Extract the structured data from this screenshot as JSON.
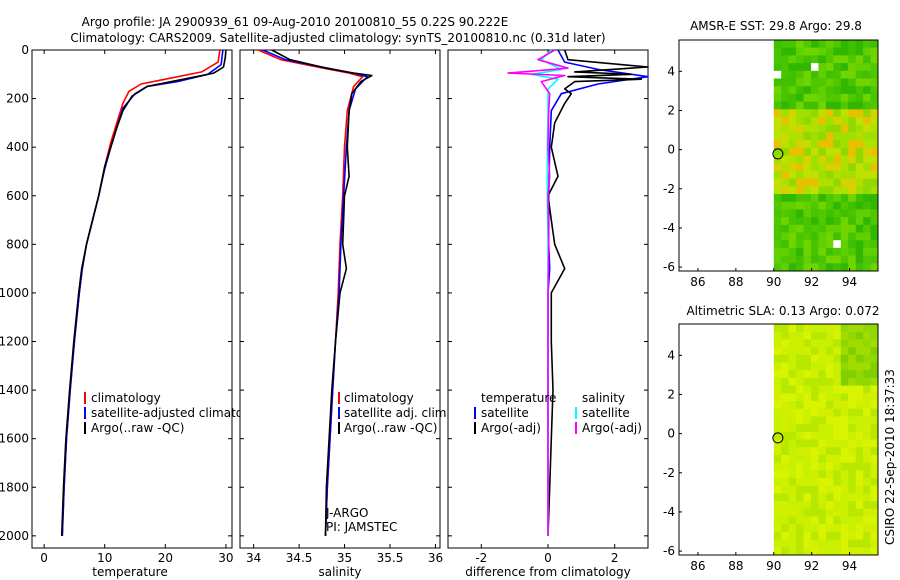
{
  "header": {
    "line1": "Argo profile: JA 2900939_61 09-Aug-2010 20100810_55 0.22S 90.222E",
    "line2": "Climatology: CARS2009. Satellite-adjusted climatology: synTS_20100810.nc (0.31d later)"
  },
  "credit": "CSIRO 22-Sep-2010 18:37:33",
  "colors": {
    "clim": "#ff0000",
    "sat": "#0000ff",
    "argo": "#000000",
    "sat_sal": "#00ffff",
    "argo_sal": "#ff00ff",
    "map_bg": "#ffffff",
    "land": "#ffffff"
  },
  "chart_data": [
    {
      "id": "temperature",
      "type": "line",
      "xlabel": "temperature",
      "xlim": [
        -2,
        31
      ],
      "ylim": [
        0,
        2050
      ],
      "xticks": [
        0,
        10,
        20,
        30
      ],
      "yticks": [
        0,
        200,
        400,
        600,
        800,
        1000,
        1200,
        1400,
        1600,
        1800,
        2000
      ],
      "legend": [
        "climatology",
        "satellite-adjusted climatology",
        "Argo(..raw -QC)"
      ],
      "series": [
        {
          "name": "climatology",
          "color": "#ff0000",
          "points": [
            [
              29.0,
              0
            ],
            [
              28.7,
              50
            ],
            [
              26,
              90
            ],
            [
              20,
              120
            ],
            [
              16,
              140
            ],
            [
              14,
              170
            ],
            [
              13,
              220
            ],
            [
              12,
              300
            ],
            [
              11,
              380
            ],
            [
              10,
              480
            ],
            [
              9,
              600
            ],
            [
              8,
              700
            ],
            [
              7,
              800
            ],
            [
              6.3,
              900
            ],
            [
              5.8,
              1000
            ],
            [
              5,
              1200
            ],
            [
              4.3,
              1400
            ],
            [
              3.7,
              1600
            ],
            [
              3.3,
              1800
            ],
            [
              3,
              2000
            ]
          ]
        },
        {
          "name": "satellite-adjusted climatology",
          "color": "#0000ff",
          "points": [
            [
              29.5,
              0
            ],
            [
              29.2,
              60
            ],
            [
              27,
              100
            ],
            [
              22,
              130
            ],
            [
              17,
              150
            ],
            [
              15,
              180
            ],
            [
              13,
              240
            ],
            [
              12,
              320
            ],
            [
              11,
              400
            ],
            [
              10,
              490
            ],
            [
              9,
              600
            ],
            [
              8,
              700
            ],
            [
              7,
              800
            ],
            [
              6.3,
              900
            ],
            [
              5.8,
              1000
            ],
            [
              5,
              1200
            ],
            [
              4.3,
              1400
            ],
            [
              3.7,
              1600
            ],
            [
              3.3,
              1800
            ],
            [
              3,
              2000
            ]
          ]
        },
        {
          "name": "Argo(..raw -QC)",
          "color": "#000000",
          "points": [
            [
              30.0,
              0
            ],
            [
              29.9,
              30
            ],
            [
              29.6,
              70
            ],
            [
              28,
              95
            ],
            [
              23,
              120
            ],
            [
              17,
              150
            ],
            [
              14.5,
              190
            ],
            [
              13,
              250
            ],
            [
              12,
              320
            ],
            [
              11,
              400
            ],
            [
              10,
              480
            ],
            [
              9,
              600
            ],
            [
              8,
              700
            ],
            [
              7,
              800
            ],
            [
              6.2,
              900
            ],
            [
              5.7,
              1000
            ],
            [
              4.9,
              1200
            ],
            [
              4.2,
              1400
            ],
            [
              3.6,
              1600
            ],
            [
              3.2,
              1800
            ],
            [
              2.9,
              2000
            ]
          ]
        }
      ]
    },
    {
      "id": "salinity",
      "type": "line",
      "xlabel": "salinity",
      "xlim": [
        33.85,
        36.05
      ],
      "ylim": [
        0,
        2050
      ],
      "xticks": [
        34,
        34.5,
        35,
        35.5,
        36
      ],
      "xtick_labels": [
        "34",
        "34.5",
        "35",
        "35.5",
        "36"
      ],
      "legend": [
        "climatology",
        "satellite adj. clim.",
        "Argo(..raw -QC)"
      ],
      "notes": [
        "J-ARGO",
        "PI: JAMSTEC"
      ],
      "series": [
        {
          "name": "climatology",
          "color": "#ff0000",
          "points": [
            [
              34.05,
              0
            ],
            [
              34.3,
              40
            ],
            [
              34.7,
              70
            ],
            [
              35.05,
              95
            ],
            [
              35.2,
              110
            ],
            [
              35.1,
              150
            ],
            [
              35.03,
              250
            ],
            [
              35.0,
              400
            ],
            [
              34.98,
              600
            ],
            [
              34.95,
              800
            ],
            [
              34.93,
              1000
            ],
            [
              34.9,
              1200
            ],
            [
              34.87,
              1400
            ],
            [
              34.84,
              1600
            ],
            [
              34.81,
              1800
            ],
            [
              34.79,
              2000
            ]
          ]
        },
        {
          "name": "satellite adj. clim.",
          "color": "#0000ff",
          "points": [
            [
              34.1,
              0
            ],
            [
              34.35,
              40
            ],
            [
              34.75,
              70
            ],
            [
              35.1,
              95
            ],
            [
              35.25,
              110
            ],
            [
              35.12,
              160
            ],
            [
              35.05,
              250
            ],
            [
              35.02,
              400
            ],
            [
              34.99,
              600
            ],
            [
              34.96,
              800
            ],
            [
              34.94,
              1000
            ],
            [
              34.9,
              1200
            ],
            [
              34.87,
              1400
            ],
            [
              34.84,
              1600
            ],
            [
              34.81,
              1800
            ],
            [
              34.79,
              2000
            ]
          ]
        },
        {
          "name": "Argo(..raw -QC)",
          "color": "#000000",
          "points": [
            [
              34.2,
              0
            ],
            [
              34.4,
              40
            ],
            [
              34.8,
              75
            ],
            [
              35.1,
              95
            ],
            [
              35.3,
              105
            ],
            [
              35.18,
              130
            ],
            [
              35.08,
              180
            ],
            [
              35.05,
              250
            ],
            [
              35.03,
              400
            ],
            [
              35.05,
              520
            ],
            [
              35.0,
              600
            ],
            [
              34.98,
              800
            ],
            [
              35.02,
              900
            ],
            [
              34.95,
              1000
            ],
            [
              34.9,
              1200
            ],
            [
              34.86,
              1400
            ],
            [
              34.83,
              1600
            ],
            [
              34.8,
              1800
            ],
            [
              34.79,
              2000
            ]
          ]
        }
      ]
    },
    {
      "id": "difference",
      "type": "line",
      "xlabel": "difference from climatology",
      "xlim": [
        -3,
        3
      ],
      "ylim": [
        0,
        2050
      ],
      "xticks": [
        -2,
        0,
        2
      ],
      "legend_left_title": "temperature",
      "legend_right_title": "salinity",
      "legend_left": [
        "satellite",
        "Argo(-adj)"
      ],
      "legend_right": [
        "satellite",
        "Argo(-adj)"
      ],
      "series": [
        {
          "name": "temperature satellite",
          "color": "#0000ff",
          "points": [
            [
              0.3,
              0
            ],
            [
              0.5,
              50
            ],
            [
              1.5,
              80
            ],
            [
              3.0,
              110
            ],
            [
              1.5,
              140
            ],
            [
              0.4,
              180
            ],
            [
              0.1,
              250
            ],
            [
              0.05,
              400
            ],
            [
              0.02,
              600
            ],
            [
              0.02,
              800
            ],
            [
              0.05,
              900
            ],
            [
              0.0,
              1000
            ],
            [
              0.0,
              1200
            ],
            [
              0.0,
              1400
            ],
            [
              0.0,
              1600
            ],
            [
              0.0,
              1800
            ],
            [
              0.0,
              2000
            ]
          ]
        },
        {
          "name": "temperature Argo(-adj)",
          "color": "#000000",
          "points": [
            [
              0.5,
              0
            ],
            [
              0.6,
              40
            ],
            [
              3.0,
              70
            ],
            [
              0.8,
              90
            ],
            [
              2.5,
              100
            ],
            [
              0.6,
              110
            ],
            [
              2.8,
              120
            ],
            [
              0.8,
              130
            ],
            [
              0.5,
              160
            ],
            [
              0.7,
              180
            ],
            [
              0.5,
              220
            ],
            [
              0.2,
              300
            ],
            [
              0.1,
              400
            ],
            [
              0.3,
              520
            ],
            [
              0.0,
              600
            ],
            [
              0.1,
              700
            ],
            [
              0.2,
              800
            ],
            [
              0.5,
              900
            ],
            [
              0.1,
              1000
            ],
            [
              0.1,
              1200
            ],
            [
              0.15,
              1400
            ],
            [
              0.1,
              1600
            ],
            [
              0.05,
              1800
            ],
            [
              0.0,
              2000
            ]
          ]
        },
        {
          "name": "salinity satellite",
          "color": "#00ffff",
          "points": [
            [
              0.1,
              0
            ],
            [
              -0.2,
              40
            ],
            [
              0.4,
              80
            ],
            [
              -0.5,
              100
            ],
            [
              0.3,
              120
            ],
            [
              0.0,
              160
            ],
            [
              0.0,
              250
            ],
            [
              -0.02,
              400
            ],
            [
              -0.02,
              600
            ],
            [
              0.0,
              800
            ],
            [
              0.0,
              1000
            ],
            [
              0.0,
              1200
            ],
            [
              0.0,
              1400
            ],
            [
              0.0,
              1600
            ],
            [
              0.0,
              1800
            ],
            [
              0.0,
              2000
            ]
          ]
        },
        {
          "name": "salinity Argo(-adj)",
          "color": "#ff00ff",
          "points": [
            [
              0.2,
              0
            ],
            [
              -0.3,
              40
            ],
            [
              0.6,
              75
            ],
            [
              -1.2,
              95
            ],
            [
              0.5,
              105
            ],
            [
              -0.2,
              130
            ],
            [
              0.05,
              180
            ],
            [
              0.02,
              250
            ],
            [
              0.0,
              400
            ],
            [
              0.05,
              520
            ],
            [
              0.0,
              600
            ],
            [
              0.02,
              800
            ],
            [
              0.0,
              1000
            ],
            [
              0.0,
              1200
            ],
            [
              0.0,
              1400
            ],
            [
              0.0,
              1600
            ],
            [
              0.0,
              1800
            ],
            [
              0.0,
              2000
            ]
          ]
        }
      ]
    },
    {
      "id": "sst_map",
      "type": "heatmap",
      "title": "AMSR-E SST: 29.8 Argo: 29.8",
      "xlim": [
        85,
        95.5
      ],
      "ylim": [
        -6.2,
        5.6
      ],
      "xticks": [
        86,
        88,
        90,
        92,
        94
      ],
      "yticks": [
        4,
        2,
        0,
        -2,
        -4,
        -6
      ],
      "data_xlim": [
        90,
        95.5
      ],
      "marker": [
        90.22,
        -0.22
      ]
    },
    {
      "id": "sla_map",
      "type": "heatmap",
      "title": "Altimetric SLA: 0.13 Argo: 0.072",
      "xlim": [
        85,
        95.5
      ],
      "ylim": [
        -6.2,
        5.6
      ],
      "xticks": [
        86,
        88,
        90,
        92,
        94
      ],
      "yticks": [
        4,
        2,
        0,
        -2,
        -4,
        -6
      ],
      "data_xlim": [
        90,
        95.5
      ],
      "marker": [
        90.22,
        -0.22
      ]
    }
  ]
}
